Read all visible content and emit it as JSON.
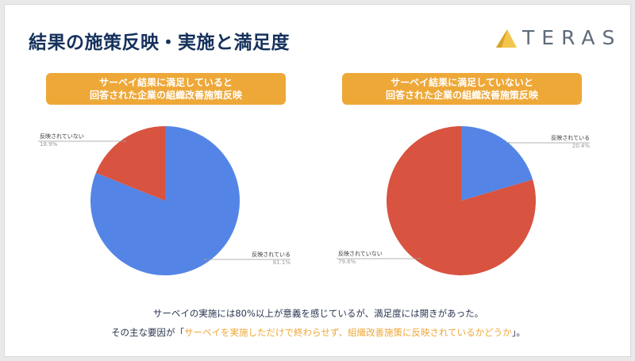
{
  "title": "結果の施策反映・実施と満足度",
  "logo": {
    "text": "TERAS",
    "icon": "triangle-logo-icon"
  },
  "colors": {
    "blue": "#5485e6",
    "red": "#d85340",
    "banner": "#eea838",
    "title": "#15315c"
  },
  "charts": [
    {
      "banner_line1": "サーベイ結果に満足していると",
      "banner_line2": "回答された企業の組織改善施策反映",
      "labels": [
        {
          "text": "反映されていない",
          "pct": "18.9%"
        },
        {
          "text": "反映されている",
          "pct": "81.1%"
        }
      ]
    },
    {
      "banner_line1": "サーベイ結果に満足していないと",
      "banner_line2": "回答された企業の組織改善施策反映",
      "labels": [
        {
          "text": "反映されている",
          "pct": "20.4%"
        },
        {
          "text": "反映されていない",
          "pct": "79.6%"
        }
      ]
    }
  ],
  "chart_data": [
    {
      "type": "pie",
      "title": "サーベイ結果に満足していると回答された企業の組織改善施策反映",
      "slices": [
        {
          "label": "反映されている",
          "value": 81.1,
          "color": "#5485e6"
        },
        {
          "label": "反映されていない",
          "value": 18.9,
          "color": "#d85340"
        }
      ]
    },
    {
      "type": "pie",
      "title": "サーベイ結果に満足していないと回答された企業の組織改善施策反映",
      "slices": [
        {
          "label": "反映されている",
          "value": 20.4,
          "color": "#5485e6"
        },
        {
          "label": "反映されていない",
          "value": 79.6,
          "color": "#d85340"
        }
      ]
    }
  ],
  "summary": {
    "line1": "サーベイの実施には80%以上が意義を感じているが、満足度には開きがあった。",
    "line2_prefix": "その主な要因が「",
    "line2_highlight": "サーベイを実施しただけで終わらせず、組織改善施策に反映されているかどうか",
    "line2_suffix": "」。"
  }
}
